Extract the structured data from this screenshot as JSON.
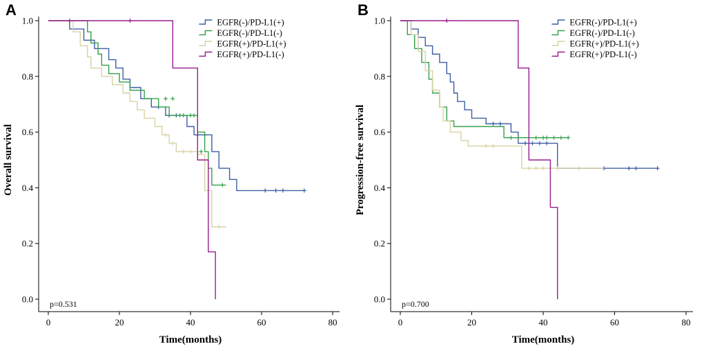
{
  "figure": {
    "type": "kaplan-meier-survival-figure",
    "background": "#ffffff"
  },
  "chart_data": [
    {
      "type": "line",
      "subtype": "kaplan-meier-step",
      "panel_label": "A",
      "title": "",
      "xlabel": "Time(months)",
      "ylabel": "Overall survival",
      "xlim": [
        0,
        80
      ],
      "ylim": [
        0,
        1
      ],
      "xticks": [
        0,
        20,
        40,
        60,
        80
      ],
      "xtick_labels": [
        "0",
        "20",
        "40",
        "60",
        "80"
      ],
      "yticks": [
        0,
        0.2,
        0.4,
        0.6,
        0.8,
        1.0
      ],
      "ytick_labels": [
        "0.0",
        "0.2",
        "0.4",
        "0.6",
        "0.8",
        "1.0"
      ],
      "annotation": "p=0.531",
      "legend_position": "top-right",
      "grid": false,
      "series": [
        {
          "name": "EGFR(-)/PD-L1(+)",
          "color": "#3D5CA6",
          "steps": [
            [
              0,
              1.0
            ],
            [
              6,
              0.97
            ],
            [
              10,
              0.93
            ],
            [
              13,
              0.9
            ],
            [
              17,
              0.86
            ],
            [
              19,
              0.83
            ],
            [
              21,
              0.79
            ],
            [
              23,
              0.76
            ],
            [
              26,
              0.72
            ],
            [
              29,
              0.69
            ],
            [
              33,
              0.66
            ],
            [
              39,
              0.62
            ],
            [
              41,
              0.59
            ],
            [
              46,
              0.53
            ],
            [
              48,
              0.47
            ],
            [
              51,
              0.43
            ],
            [
              53,
              0.39
            ],
            [
              72,
              0.39
            ]
          ],
          "censors": [
            [
              31,
              0.69
            ],
            [
              34,
              0.66
            ],
            [
              36,
              0.66
            ],
            [
              42,
              0.59
            ],
            [
              44,
              0.59
            ],
            [
              61,
              0.39
            ],
            [
              64,
              0.39
            ],
            [
              66,
              0.39
            ],
            [
              72,
              0.39
            ]
          ]
        },
        {
          "name": "EGFR(-)/PD-L1(-)",
          "color": "#33A04A",
          "steps": [
            [
              0,
              1.0
            ],
            [
              11,
              0.96
            ],
            [
              12,
              0.92
            ],
            [
              14,
              0.88
            ],
            [
              15,
              0.84
            ],
            [
              17,
              0.81
            ],
            [
              20,
              0.78
            ],
            [
              23,
              0.75
            ],
            [
              27,
              0.72
            ],
            [
              31,
              0.69
            ],
            [
              34,
              0.66
            ],
            [
              42,
              0.6
            ],
            [
              44,
              0.53
            ],
            [
              45,
              0.47
            ],
            [
              46,
              0.41
            ],
            [
              50,
              0.41
            ]
          ],
          "censors": [
            [
              33,
              0.72
            ],
            [
              35,
              0.72
            ],
            [
              37,
              0.66
            ],
            [
              38,
              0.66
            ],
            [
              40,
              0.66
            ],
            [
              41,
              0.66
            ],
            [
              43,
              0.53
            ],
            [
              49,
              0.41
            ]
          ]
        },
        {
          "name": "EGFR(+)/PD-L1(+)",
          "color": "#D8D2A4",
          "steps": [
            [
              0,
              1.0
            ],
            [
              7,
              0.96
            ],
            [
              9,
              0.91
            ],
            [
              11,
              0.87
            ],
            [
              12,
              0.83
            ],
            [
              15,
              0.8
            ],
            [
              18,
              0.77
            ],
            [
              21,
              0.74
            ],
            [
              23,
              0.71
            ],
            [
              25,
              0.68
            ],
            [
              27,
              0.65
            ],
            [
              30,
              0.62
            ],
            [
              32,
              0.59
            ],
            [
              34,
              0.56
            ],
            [
              36,
              0.53
            ],
            [
              42,
              0.52
            ],
            [
              44,
              0.39
            ],
            [
              46,
              0.26
            ],
            [
              50,
              0.26
            ]
          ],
          "censors": [
            [
              33,
              0.59
            ],
            [
              35,
              0.56
            ],
            [
              38,
              0.53
            ],
            [
              40,
              0.53
            ],
            [
              48,
              0.26
            ]
          ]
        },
        {
          "name": "EGFR(+)/PD-L1(-)",
          "color": "#991C8E",
          "steps": [
            [
              0,
              1.0
            ],
            [
              35,
              0.83
            ],
            [
              42,
              0.5
            ],
            [
              45,
              0.17
            ],
            [
              47,
              0.0
            ]
          ],
          "censors": [
            [
              6,
              1.0
            ],
            [
              23,
              1.0
            ]
          ]
        }
      ]
    },
    {
      "type": "line",
      "subtype": "kaplan-meier-step",
      "panel_label": "B",
      "title": "",
      "xlabel": "Time(months)",
      "ylabel": "Progression-free survival",
      "xlim": [
        0,
        80
      ],
      "ylim": [
        0,
        1
      ],
      "xticks": [
        0,
        20,
        40,
        60,
        80
      ],
      "xtick_labels": [
        "0",
        "20",
        "40",
        "60",
        "80"
      ],
      "yticks": [
        0,
        0.2,
        0.4,
        0.6,
        0.8,
        1.0
      ],
      "ytick_labels": [
        "0.0",
        "0.2",
        "0.4",
        "0.6",
        "0.8",
        "1.0"
      ],
      "annotation": "p=0.700",
      "legend_position": "top-right",
      "grid": false,
      "series": [
        {
          "name": "EGFR(-)/PD-L1(+)",
          "color": "#3D5CA6",
          "steps": [
            [
              0,
              1.0
            ],
            [
              3,
              0.97
            ],
            [
              5,
              0.94
            ],
            [
              7,
              0.91
            ],
            [
              9,
              0.88
            ],
            [
              11,
              0.85
            ],
            [
              13,
              0.81
            ],
            [
              14,
              0.78
            ],
            [
              15,
              0.74
            ],
            [
              16,
              0.71
            ],
            [
              18,
              0.68
            ],
            [
              20,
              0.65
            ],
            [
              24,
              0.63
            ],
            [
              31,
              0.6
            ],
            [
              33,
              0.56
            ],
            [
              43,
              0.56
            ],
            [
              44,
              0.47
            ],
            [
              72,
              0.47
            ]
          ],
          "censors": [
            [
              26,
              0.63
            ],
            [
              28,
              0.63
            ],
            [
              35,
              0.56
            ],
            [
              37,
              0.56
            ],
            [
              39,
              0.56
            ],
            [
              41,
              0.56
            ],
            [
              57,
              0.47
            ],
            [
              64,
              0.47
            ],
            [
              66,
              0.47
            ],
            [
              72,
              0.47
            ]
          ]
        },
        {
          "name": "EGFR(-)/PD-L1(-)",
          "color": "#33A04A",
          "steps": [
            [
              0,
              1.0
            ],
            [
              2,
              0.95
            ],
            [
              4,
              0.9
            ],
            [
              6,
              0.85
            ],
            [
              8,
              0.79
            ],
            [
              9,
              0.74
            ],
            [
              11,
              0.69
            ],
            [
              13,
              0.64
            ],
            [
              15,
              0.62
            ],
            [
              29,
              0.58
            ],
            [
              47,
              0.58
            ]
          ],
          "censors": [
            [
              31,
              0.58
            ],
            [
              33,
              0.58
            ],
            [
              38,
              0.58
            ],
            [
              40,
              0.58
            ],
            [
              41,
              0.58
            ],
            [
              43,
              0.58
            ],
            [
              45,
              0.58
            ],
            [
              47,
              0.58
            ]
          ]
        },
        {
          "name": "EGFR(+)/PD-L1(+)",
          "color": "#D8D2A4",
          "steps": [
            [
              0,
              1.0
            ],
            [
              3,
              0.95
            ],
            [
              5,
              0.89
            ],
            [
              7,
              0.82
            ],
            [
              9,
              0.75
            ],
            [
              11,
              0.69
            ],
            [
              12,
              0.64
            ],
            [
              14,
              0.6
            ],
            [
              17,
              0.57
            ],
            [
              19,
              0.55
            ],
            [
              33,
              0.55
            ],
            [
              34,
              0.47
            ],
            [
              57,
              0.47
            ]
          ],
          "censors": [
            [
              24,
              0.55
            ],
            [
              26,
              0.55
            ],
            [
              36,
              0.47
            ],
            [
              38,
              0.47
            ],
            [
              40,
              0.47
            ],
            [
              42,
              0.47
            ],
            [
              44,
              0.47
            ],
            [
              50,
              0.47
            ]
          ]
        },
        {
          "name": "EGFR(+)/PD-L1(-)",
          "color": "#991C8E",
          "steps": [
            [
              0,
              1.0
            ],
            [
              33,
              0.83
            ],
            [
              36,
              0.5
            ],
            [
              42,
              0.33
            ],
            [
              44,
              0.0
            ]
          ],
          "censors": [
            [
              13,
              1.0
            ]
          ]
        }
      ]
    }
  ]
}
